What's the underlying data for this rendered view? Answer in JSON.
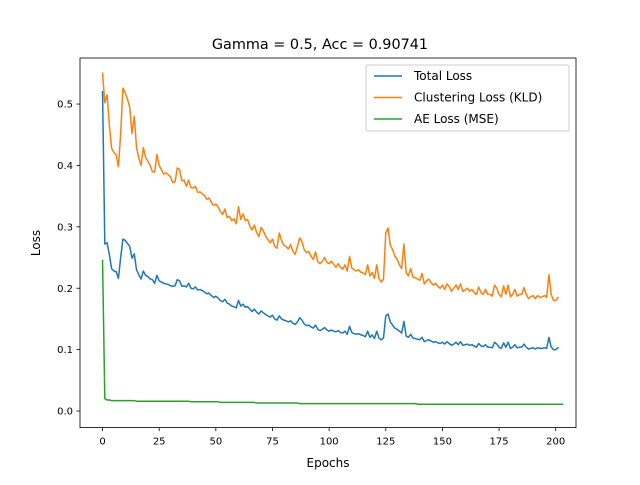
{
  "chart_data": {
    "type": "line",
    "title": "Gamma = 0.5, Acc = 0.90741",
    "xlabel": "Epochs",
    "ylabel": "Loss",
    "xlim": [
      -9.95,
      208.95
    ],
    "ylim": [
      -0.027,
      0.575
    ],
    "xticks": [
      0,
      25,
      50,
      75,
      100,
      125,
      150,
      175,
      200
    ],
    "yticks": [
      0.0,
      0.1,
      0.2,
      0.3,
      0.4,
      0.5
    ],
    "ytick_labels": [
      "0.0",
      "0.1",
      "0.2",
      "0.3",
      "0.4",
      "0.5"
    ],
    "grid": false,
    "legend_position": "top-right",
    "series": [
      {
        "name": "Total Loss",
        "color": "#1f77b4",
        "values": [
          0.52,
          0.272,
          0.274,
          0.255,
          0.232,
          0.228,
          0.227,
          0.216,
          0.25,
          0.28,
          0.278,
          0.273,
          0.268,
          0.249,
          0.256,
          0.23,
          0.222,
          0.215,
          0.228,
          0.221,
          0.219,
          0.215,
          0.214,
          0.208,
          0.221,
          0.212,
          0.21,
          0.208,
          0.207,
          0.206,
          0.204,
          0.203,
          0.204,
          0.214,
          0.212,
          0.203,
          0.204,
          0.202,
          0.208,
          0.2,
          0.199,
          0.202,
          0.197,
          0.198,
          0.196,
          0.194,
          0.191,
          0.192,
          0.188,
          0.185,
          0.187,
          0.184,
          0.18,
          0.178,
          0.182,
          0.176,
          0.174,
          0.171,
          0.17,
          0.168,
          0.18,
          0.171,
          0.174,
          0.169,
          0.17,
          0.166,
          0.162,
          0.166,
          0.161,
          0.158,
          0.163,
          0.16,
          0.157,
          0.155,
          0.153,
          0.156,
          0.15,
          0.148,
          0.155,
          0.15,
          0.148,
          0.147,
          0.145,
          0.147,
          0.143,
          0.141,
          0.145,
          0.152,
          0.148,
          0.142,
          0.139,
          0.14,
          0.137,
          0.135,
          0.14,
          0.133,
          0.131,
          0.133,
          0.136,
          0.132,
          0.13,
          0.132,
          0.13,
          0.129,
          0.131,
          0.128,
          0.127,
          0.13,
          0.125,
          0.138,
          0.128,
          0.126,
          0.125,
          0.126,
          0.124,
          0.123,
          0.121,
          0.13,
          0.12,
          0.124,
          0.118,
          0.13,
          0.119,
          0.116,
          0.119,
          0.155,
          0.158,
          0.145,
          0.14,
          0.135,
          0.133,
          0.13,
          0.127,
          0.146,
          0.122,
          0.12,
          0.125,
          0.119,
          0.118,
          0.117,
          0.116,
          0.12,
          0.113,
          0.115,
          0.116,
          0.114,
          0.112,
          0.113,
          0.111,
          0.11,
          0.112,
          0.109,
          0.113,
          0.11,
          0.107,
          0.109,
          0.112,
          0.108,
          0.113,
          0.107,
          0.108,
          0.109,
          0.107,
          0.108,
          0.106,
          0.104,
          0.11,
          0.106,
          0.105,
          0.108,
          0.104,
          0.104,
          0.103,
          0.112,
          0.109,
          0.104,
          0.102,
          0.111,
          0.104,
          0.112,
          0.102,
          0.104,
          0.108,
          0.103,
          0.104,
          0.104,
          0.109,
          0.104,
          0.101,
          0.102,
          0.103,
          0.101,
          0.103,
          0.102,
          0.102,
          0.103,
          0.102,
          0.12,
          0.104,
          0.1,
          0.1,
          0.103
        ]
      },
      {
        "name": "Clustering Loss (KLD)",
        "color": "#ff7f0e",
        "values": [
          0.55,
          0.502,
          0.515,
          0.466,
          0.428,
          0.421,
          0.417,
          0.398,
          0.452,
          0.526,
          0.518,
          0.508,
          0.495,
          0.452,
          0.48,
          0.429,
          0.412,
          0.4,
          0.429,
          0.413,
          0.407,
          0.4,
          0.39,
          0.389,
          0.418,
          0.4,
          0.393,
          0.386,
          0.388,
          0.385,
          0.381,
          0.372,
          0.373,
          0.396,
          0.393,
          0.375,
          0.376,
          0.366,
          0.376,
          0.364,
          0.363,
          0.366,
          0.356,
          0.357,
          0.354,
          0.351,
          0.345,
          0.347,
          0.34,
          0.335,
          0.337,
          0.332,
          0.325,
          0.32,
          0.329,
          0.315,
          0.317,
          0.31,
          0.313,
          0.305,
          0.333,
          0.312,
          0.321,
          0.31,
          0.312,
          0.301,
          0.295,
          0.303,
          0.291,
          0.284,
          0.299,
          0.293,
          0.285,
          0.279,
          0.274,
          0.28,
          0.268,
          0.265,
          0.29,
          0.278,
          0.27,
          0.268,
          0.264,
          0.271,
          0.26,
          0.255,
          0.268,
          0.282,
          0.276,
          0.263,
          0.258,
          0.26,
          0.252,
          0.247,
          0.259,
          0.243,
          0.24,
          0.244,
          0.25,
          0.242,
          0.24,
          0.244,
          0.239,
          0.234,
          0.24,
          0.234,
          0.231,
          0.238,
          0.228,
          0.252,
          0.233,
          0.23,
          0.228,
          0.23,
          0.226,
          0.225,
          0.222,
          0.238,
          0.22,
          0.226,
          0.216,
          0.238,
          0.216,
          0.21,
          0.215,
          0.29,
          0.298,
          0.27,
          0.263,
          0.252,
          0.247,
          0.238,
          0.232,
          0.272,
          0.225,
          0.22,
          0.232,
          0.218,
          0.217,
          0.215,
          0.213,
          0.224,
          0.207,
          0.212,
          0.215,
          0.209,
          0.205,
          0.208,
          0.203,
          0.2,
          0.205,
          0.198,
          0.207,
          0.203,
          0.195,
          0.2,
          0.205,
          0.198,
          0.207,
          0.195,
          0.197,
          0.2,
          0.195,
          0.198,
          0.193,
          0.19,
          0.202,
          0.193,
          0.19,
          0.198,
          0.19,
          0.19,
          0.187,
          0.205,
          0.2,
          0.19,
          0.186,
          0.204,
          0.19,
          0.205,
          0.186,
          0.19,
          0.198,
          0.187,
          0.19,
          0.19,
          0.201,
          0.19,
          0.183,
          0.186,
          0.188,
          0.183,
          0.188,
          0.185,
          0.186,
          0.188,
          0.185,
          0.222,
          0.19,
          0.18,
          0.18,
          0.185
        ]
      },
      {
        "name": "AE Loss (MSE)",
        "color": "#2ca02c",
        "values": [
          0.245,
          0.02,
          0.018,
          0.018,
          0.017,
          0.017,
          0.017,
          0.017,
          0.017,
          0.017,
          0.017,
          0.017,
          0.017,
          0.017,
          0.017,
          0.016,
          0.016,
          0.016,
          0.016,
          0.016,
          0.016,
          0.016,
          0.016,
          0.016,
          0.016,
          0.016,
          0.016,
          0.016,
          0.016,
          0.016,
          0.016,
          0.016,
          0.016,
          0.016,
          0.016,
          0.016,
          0.016,
          0.016,
          0.016,
          0.015,
          0.015,
          0.015,
          0.015,
          0.015,
          0.015,
          0.015,
          0.015,
          0.015,
          0.015,
          0.015,
          0.015,
          0.015,
          0.014,
          0.014,
          0.014,
          0.014,
          0.014,
          0.014,
          0.014,
          0.014,
          0.014,
          0.014,
          0.014,
          0.014,
          0.014,
          0.014,
          0.014,
          0.014,
          0.013,
          0.013,
          0.013,
          0.013,
          0.013,
          0.013,
          0.013,
          0.013,
          0.013,
          0.013,
          0.013,
          0.013,
          0.013,
          0.013,
          0.013,
          0.013,
          0.013,
          0.013,
          0.013,
          0.012,
          0.012,
          0.012,
          0.012,
          0.012,
          0.012,
          0.012,
          0.012,
          0.012,
          0.012,
          0.012,
          0.012,
          0.012,
          0.012,
          0.012,
          0.012,
          0.012,
          0.012,
          0.012,
          0.012,
          0.012,
          0.012,
          0.012,
          0.012,
          0.012,
          0.012,
          0.012,
          0.012,
          0.012,
          0.012,
          0.012,
          0.012,
          0.012,
          0.012,
          0.012,
          0.012,
          0.012,
          0.012,
          0.012,
          0.012,
          0.012,
          0.012,
          0.012,
          0.012,
          0.012,
          0.012,
          0.012,
          0.012,
          0.012,
          0.012,
          0.012,
          0.012,
          0.011,
          0.011,
          0.011,
          0.011,
          0.011,
          0.011,
          0.011,
          0.011,
          0.011,
          0.011,
          0.011,
          0.011,
          0.011,
          0.011,
          0.011,
          0.011,
          0.011,
          0.011,
          0.011,
          0.011,
          0.011,
          0.011,
          0.011,
          0.011,
          0.011,
          0.011,
          0.011,
          0.011,
          0.011,
          0.011,
          0.011,
          0.011,
          0.011,
          0.011,
          0.011,
          0.011,
          0.011,
          0.011,
          0.011,
          0.011,
          0.011,
          0.011,
          0.011,
          0.011,
          0.011,
          0.011,
          0.011,
          0.011,
          0.011,
          0.011,
          0.011,
          0.011,
          0.011,
          0.011,
          0.011,
          0.011,
          0.011,
          0.011,
          0.011,
          0.011,
          0.011,
          0.011,
          0.011,
          0.011,
          0.011
        ]
      }
    ]
  }
}
